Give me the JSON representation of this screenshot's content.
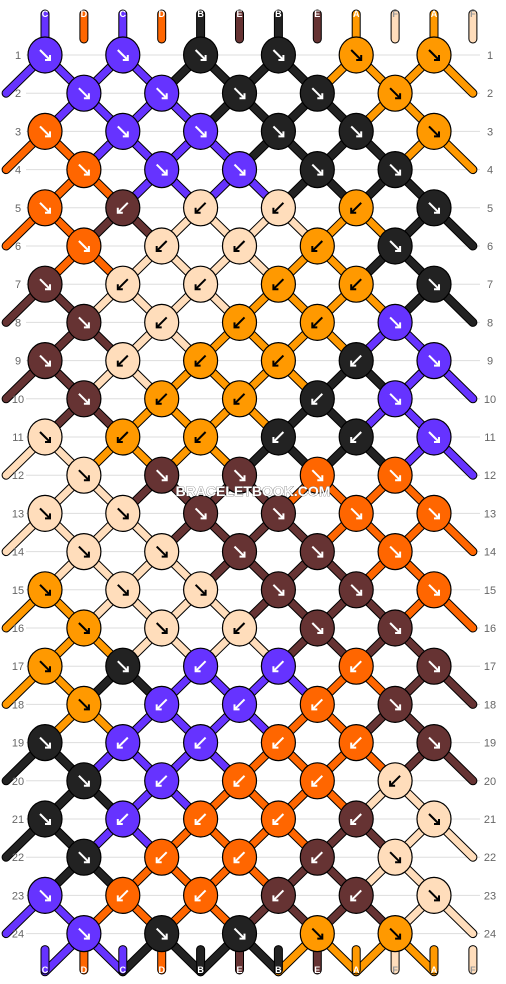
{
  "watermark": "BRACELETBOOK.COM",
  "colors": {
    "A": "#FF9900",
    "B": "#222222",
    "C": "#6633FF",
    "D": "#FF6600",
    "E": "#663333",
    "F": "#FFDDBB"
  },
  "strands_top": [
    "C",
    "D",
    "C",
    "D",
    "B",
    "E",
    "B",
    "E",
    "A",
    "F",
    "A",
    "F"
  ],
  "strands_bottom": [
    "C",
    "D",
    "C",
    "D",
    "B",
    "E",
    "B",
    "E",
    "A",
    "F",
    "A",
    "F"
  ],
  "row_numbers": [
    "1",
    "2",
    "3",
    "4",
    "5",
    "6",
    "7",
    "8",
    "9",
    "10",
    "11",
    "12",
    "13",
    "14",
    "15",
    "16",
    "17",
    "18",
    "19",
    "20",
    "21",
    "22",
    "23",
    "24"
  ],
  "knots": [
    [
      "C:R",
      "C:R",
      "B:R",
      "B:R",
      "A:R",
      "A:R"
    ],
    [
      "C:R",
      "C:R",
      "B:R",
      "B:R",
      "A:R"
    ],
    [
      "D:R",
      "C:R",
      "C:R",
      "B:R",
      "B:R",
      "A:R"
    ],
    [
      "D:R",
      "C:R",
      "C:R",
      "B:R",
      "B:R"
    ],
    [
      "D:R",
      "E:L",
      "F:L",
      "F:L",
      "A:L",
      "B:R"
    ],
    [
      "D:R",
      "F:L",
      "F:L",
      "A:L",
      "B:R"
    ],
    [
      "E:R",
      "F:L",
      "F:L",
      "A:L",
      "A:L",
      "B:R"
    ],
    [
      "E:R",
      "F:L",
      "A:L",
      "A:L",
      "C:R"
    ],
    [
      "E:R",
      "F:L",
      "A:L",
      "A:L",
      "B:L",
      "C:R"
    ],
    [
      "E:R",
      "A:L",
      "A:L",
      "B:L",
      "C:R"
    ],
    [
      "F:R",
      "A:L",
      "A:L",
      "B:L",
      "B:L",
      "C:R"
    ],
    [
      "F:R",
      "E:R",
      "E:R",
      "D:R",
      "D:R"
    ],
    [
      "F:R",
      "F:R",
      "E:R",
      "E:R",
      "D:R",
      "D:R"
    ],
    [
      "F:R",
      "F:R",
      "E:R",
      "E:R",
      "D:R"
    ],
    [
      "A:R",
      "F:R",
      "F:R",
      "E:R",
      "E:R",
      "D:R"
    ],
    [
      "A:R",
      "F:R",
      "F:L",
      "E:R",
      "E:R"
    ],
    [
      "A:R",
      "B:R",
      "C:L",
      "C:L",
      "D:L",
      "E:R"
    ],
    [
      "A:R",
      "C:L",
      "C:L",
      "D:L",
      "E:R"
    ],
    [
      "B:R",
      "C:L",
      "C:L",
      "D:L",
      "D:L",
      "E:R"
    ],
    [
      "B:R",
      "C:L",
      "D:L",
      "D:L",
      "F:L"
    ],
    [
      "B:R",
      "C:L",
      "D:L",
      "D:L",
      "E:L",
      "F:R"
    ],
    [
      "B:R",
      "D:L",
      "D:L",
      "E:L",
      "F:R"
    ],
    [
      "C:R",
      "D:L",
      "D:L",
      "E:L",
      "E:L",
      "F:R"
    ],
    [
      "C:R",
      "B:R",
      "B:R",
      "A:R",
      "A:R"
    ]
  ]
}
